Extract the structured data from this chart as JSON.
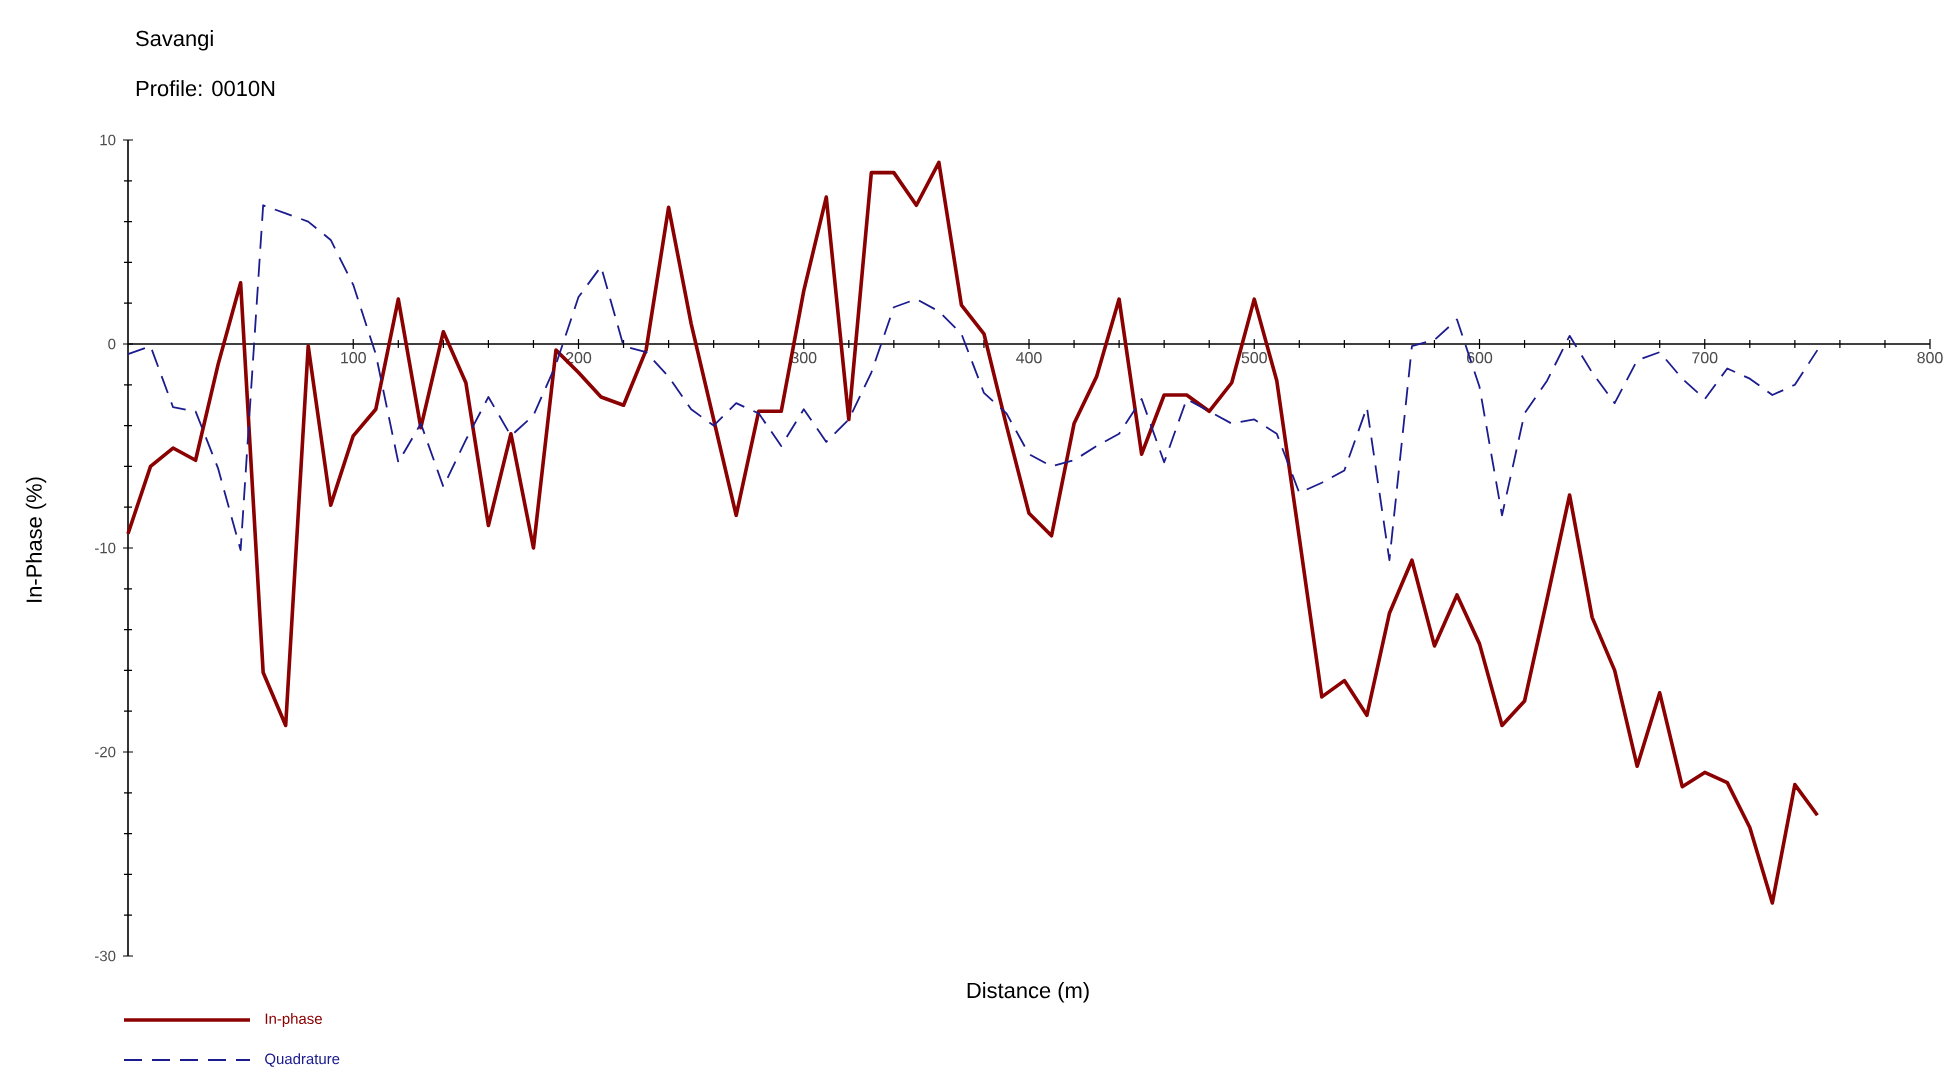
{
  "chart_data": {
    "type": "line",
    "title": "Savangi",
    "subtitle": "Profile: 0010N",
    "xlabel": "Distance (m)",
    "ylabel": "In-Phase (%)",
    "x": [
      0,
      10,
      20,
      30,
      40,
      50,
      60,
      70,
      80,
      90,
      100,
      110,
      120,
      130,
      140,
      150,
      160,
      170,
      180,
      190,
      200,
      210,
      220,
      230,
      240,
      250,
      260,
      270,
      280,
      290,
      300,
      310,
      320,
      330,
      340,
      350,
      360,
      370,
      380,
      390,
      400,
      410,
      420,
      430,
      440,
      450,
      460,
      470,
      480,
      490,
      500,
      510,
      520,
      530,
      540,
      550,
      560,
      570,
      580,
      590,
      600,
      610,
      620,
      630,
      640,
      650,
      660,
      670,
      680,
      690,
      700,
      710,
      720,
      730,
      740,
      750
    ],
    "series": [
      {
        "name": "In-phase",
        "color": "#8b0000",
        "line_style": "solid",
        "values": [
          -9.3,
          -6.0,
          -5.1,
          -5.7,
          -1.0,
          3.0,
          -16.1,
          -18.7,
          -0.1,
          -7.9,
          -4.5,
          -3.2,
          2.2,
          -4.1,
          0.6,
          -1.9,
          -8.9,
          -4.4,
          -10.0,
          -0.3,
          -1.4,
          -2.6,
          -3.0,
          -0.3,
          6.7,
          1.0,
          -3.7,
          -8.4,
          -3.3,
          -3.3,
          2.6,
          7.2,
          -3.7,
          8.4,
          8.4,
          6.8,
          8.9,
          1.9,
          0.5,
          -4.0,
          -8.3,
          -9.4,
          -3.9,
          -1.6,
          2.2,
          -5.4,
          -2.5,
          -2.5,
          -3.3,
          -1.9,
          2.2,
          -1.8,
          -9.5,
          -17.3,
          -16.5,
          -18.2,
          -13.2,
          -10.6,
          -14.8,
          -12.3,
          -14.7,
          -18.7,
          -17.5,
          -12.5,
          -7.4,
          -13.4,
          -16.0,
          -20.7,
          -17.1,
          -21.7,
          -21.0,
          -21.5,
          -23.7,
          -27.4,
          -21.6,
          -23.1
        ]
      },
      {
        "name": "Quadrature",
        "color": "#1c1c8e",
        "line_style": "dashed",
        "values": [
          -0.5,
          -0.1,
          -3.1,
          -3.3,
          -6.1,
          -10.1,
          6.8,
          6.4,
          6.0,
          5.1,
          2.9,
          -0.5,
          -5.8,
          -3.9,
          -7.0,
          -4.7,
          -2.6,
          -4.5,
          -3.5,
          -1.0,
          2.3,
          3.8,
          -0.1,
          -0.4,
          -1.6,
          -3.2,
          -4.0,
          -2.9,
          -3.4,
          -5.0,
          -3.2,
          -4.8,
          -3.7,
          -1.4,
          1.8,
          2.2,
          1.6,
          0.5,
          -2.4,
          -3.4,
          -5.4,
          -6.0,
          -5.7,
          -5.0,
          -4.4,
          -2.7,
          -5.8,
          -2.7,
          -3.3,
          -3.9,
          -3.7,
          -4.4,
          -7.3,
          -6.8,
          -6.2,
          -3.1,
          -10.6,
          -0.1,
          0.2,
          1.2,
          -2.1,
          -8.4,
          -3.4,
          -1.8,
          0.4,
          -1.4,
          -2.9,
          -0.8,
          -0.4,
          -1.7,
          -2.7,
          -1.2,
          -1.7,
          -2.5,
          -2.0,
          -0.3
        ]
      }
    ],
    "xlim": [
      0,
      800
    ],
    "xticks": [
      100,
      200,
      300,
      400,
      500,
      600,
      700,
      800
    ],
    "ylim": [
      -30,
      10
    ],
    "yticks": [
      -30,
      -20,
      -10,
      0,
      10
    ],
    "grid": false,
    "legend": "bottom left"
  }
}
